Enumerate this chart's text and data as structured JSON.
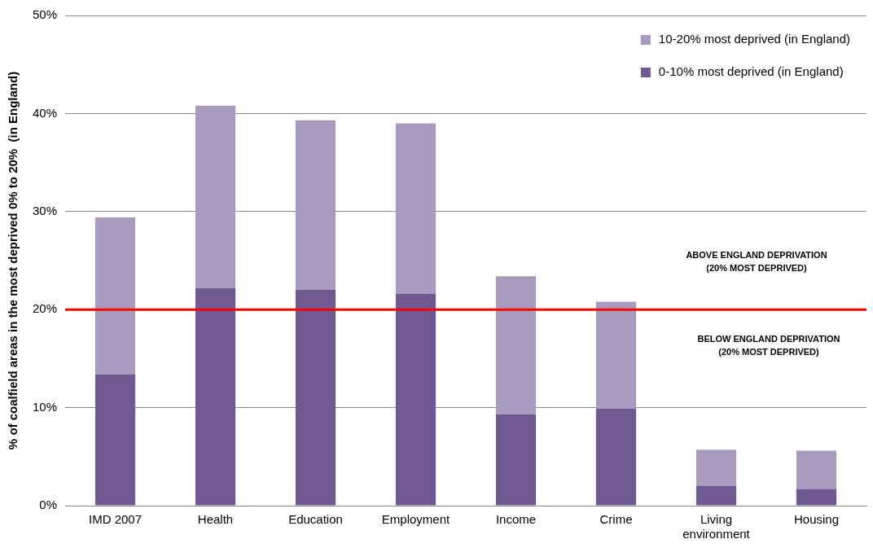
{
  "chart_data": {
    "type": "bar",
    "stacked": true,
    "ylabel": "% of coalfield areas in the most deprived 0% to 20%  (in England)",
    "categories": [
      "IMD 2007",
      "Health",
      "Education",
      "Employment",
      "Income",
      "Crime",
      "Living environment",
      "Housing"
    ],
    "series": [
      {
        "name": "0-10% most deprived (in England)",
        "color": "#705990",
        "values": [
          13.4,
          22.2,
          22.0,
          21.6,
          9.3,
          9.9,
          2.0,
          1.7
        ]
      },
      {
        "name": "10-20% most deprived (in England)",
        "color": "#a99bbe",
        "values": [
          16.0,
          18.6,
          17.3,
          17.4,
          14.1,
          10.9,
          3.7,
          3.9
        ]
      }
    ],
    "ylim": [
      0,
      50
    ],
    "yticks": [
      {
        "value": 0,
        "label": "0%"
      },
      {
        "value": 10,
        "label": "10%"
      },
      {
        "value": 20,
        "label": "20%"
      },
      {
        "value": 30,
        "label": "30%"
      },
      {
        "value": 40,
        "label": "40%"
      },
      {
        "value": 50,
        "label": "50%"
      }
    ],
    "grid": "y",
    "legend": "top right",
    "ref_lines": [
      {
        "axis": "y",
        "value": 20,
        "color": "#ff0000"
      }
    ],
    "annotations": [
      "ABOVE ENGLAND DEPRIVATION (20% MOST DEPRIVED)",
      "BELOW ENGLAND DEPRIVATION (20% MOST DEPRIVED)"
    ]
  }
}
